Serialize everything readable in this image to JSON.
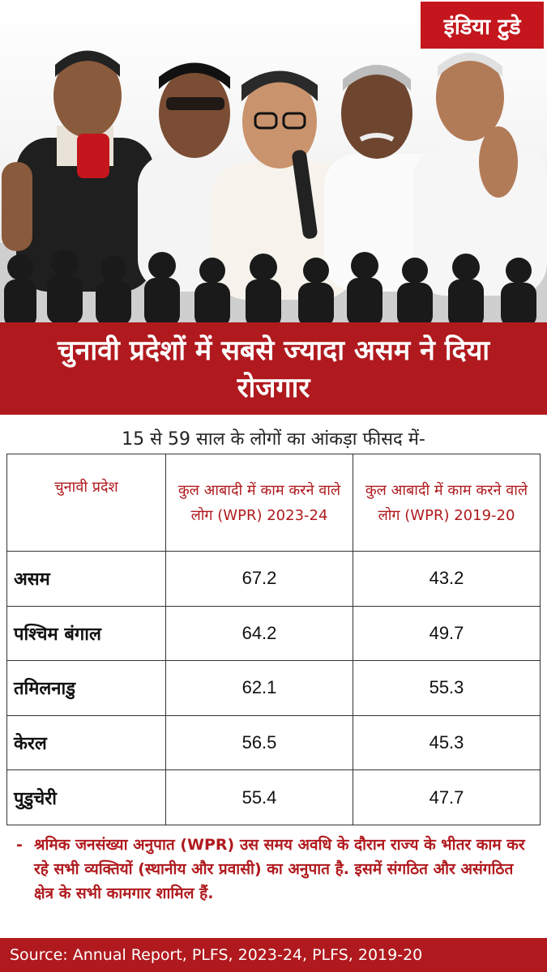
{
  "brand": {
    "logo_text": "इंडिया टुडे"
  },
  "headline": "चुनावी प्रदेशों में सबसे ज्यादा असम ने दिया रोजगार",
  "subtitle": "15 से 59 साल के लोगों का आंकड़ा फीसद में-",
  "table": {
    "headers": [
      "चुनावी प्रदेश",
      "कुल आबादी में काम करने वाले लोग (WPR) 2023-24",
      "कुल आबादी में काम करने वाले लोग (WPR) 2019-20"
    ],
    "rows": [
      {
        "state": "असम",
        "wpr_2023_24": "67.2",
        "wpr_2019_20": "43.2"
      },
      {
        "state": "पश्चिम बंगाल",
        "wpr_2023_24": "64.2",
        "wpr_2019_20": "49.7"
      },
      {
        "state": "तमिलनाडु",
        "wpr_2023_24": "62.1",
        "wpr_2019_20": "55.3"
      },
      {
        "state": "केरल",
        "wpr_2023_24": "56.5",
        "wpr_2019_20": "45.3"
      },
      {
        "state": "पुडुचेरी",
        "wpr_2023_24": "55.4",
        "wpr_2019_20": "47.7"
      }
    ]
  },
  "footnote": {
    "bullet": "-",
    "text": "श्रमिक जनसंख्या अनुपात (WPR) उस समय अवधि के दौरान राज्य के भीतर काम कर रहे सभी व्यक्तियों (स्थानीय और प्रवासी) का अनुपात है. इसमें संगठित और असंगठित क्षेत्र के सभी कामगार शामिल हैं."
  },
  "source": "Source: Annual Report, PLFS, 2023-24, PLFS, 2019-20",
  "colors": {
    "brand_red": "#b01a1e",
    "logo_red": "#c4161c",
    "text_dark": "#111111"
  }
}
